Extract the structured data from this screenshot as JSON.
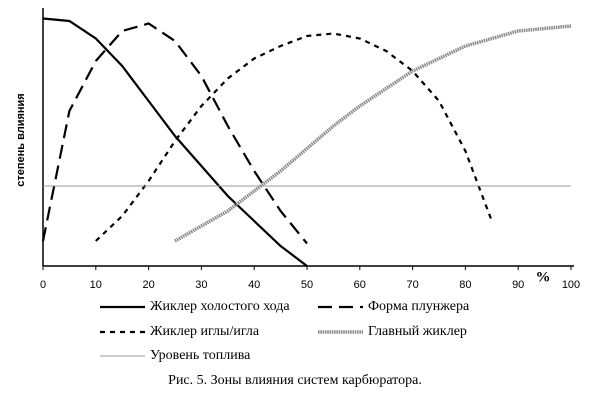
{
  "chart_data": {
    "type": "line",
    "caption": "Рис. 5. Зоны влияния систем карбюратора.",
    "y_label": "степень влияния",
    "x_unit_label": "%",
    "x": [
      0,
      5,
      10,
      15,
      20,
      25,
      30,
      35,
      40,
      45,
      50,
      55,
      60,
      65,
      70,
      75,
      80,
      85,
      90,
      95,
      100
    ],
    "xlim": [
      0,
      100
    ],
    "xticks": [
      0,
      10,
      20,
      30,
      40,
      50,
      60,
      70,
      80,
      90,
      100
    ],
    "ylim": [
      0,
      1
    ],
    "series": [
      {
        "name": "Жиклер холостого хода",
        "color": "#000000",
        "style": "solid",
        "values": [
          0.99,
          0.98,
          0.91,
          0.8,
          0.66,
          0.52,
          0.4,
          0.28,
          0.18,
          0.08,
          0,
          null,
          null,
          null,
          null,
          null,
          null,
          null,
          null,
          null,
          null
        ]
      },
      {
        "name": "Форма плунжера",
        "color": "#000000",
        "style": "long-dash",
        "values": [
          0.1,
          0.62,
          0.82,
          0.94,
          0.97,
          0.9,
          0.76,
          0.56,
          0.38,
          0.22,
          0.09,
          null,
          null,
          null,
          null,
          null,
          null,
          null,
          null,
          null,
          null
        ]
      },
      {
        "name": "Жиклер иглы/игла",
        "color": "#000000",
        "style": "short-dash",
        "values": [
          null,
          null,
          0.1,
          0.2,
          0.34,
          0.5,
          0.64,
          0.75,
          0.83,
          0.88,
          0.92,
          0.93,
          0.91,
          0.86,
          0.78,
          0.66,
          0.46,
          0.18,
          null,
          null,
          null
        ]
      },
      {
        "name": "Главный жиклер",
        "color": "#888888",
        "style": "thick",
        "values": [
          null,
          null,
          null,
          null,
          null,
          0.1,
          0.16,
          0.22,
          0.3,
          0.38,
          0.47,
          0.56,
          0.64,
          0.71,
          0.78,
          0.83,
          0.88,
          0.91,
          0.94,
          0.95,
          0.96
        ]
      },
      {
        "name": "Уровень топлива",
        "color": "#999999",
        "style": "thin",
        "values": [
          0.32,
          0.32,
          0.32,
          0.32,
          0.32,
          0.32,
          0.32,
          0.32,
          0.32,
          0.32,
          0.32,
          0.32,
          0.32,
          0.32,
          0.32,
          0.32,
          0.32,
          0.32,
          0.32,
          0.32,
          0.32
        ]
      }
    ]
  }
}
